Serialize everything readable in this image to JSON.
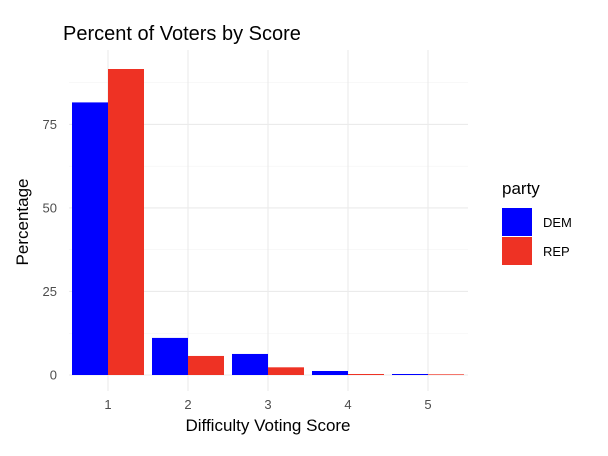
{
  "chart_data": {
    "type": "bar",
    "title": "Percent of Voters by Score",
    "xlabel": "Difficulty Voting Score",
    "ylabel": "Percentage",
    "categories": [
      "1",
      "2",
      "3",
      "4",
      "5"
    ],
    "series": [
      {
        "name": "DEM",
        "color": "#0000ff",
        "values": [
          81.6,
          11.1,
          6.3,
          1.2,
          0.3
        ]
      },
      {
        "name": "REP",
        "color": "#ee3224",
        "values": [
          91.6,
          5.7,
          2.3,
          0.3,
          0.2
        ]
      }
    ],
    "ylim": [
      0,
      96
    ],
    "yticks": [
      0,
      25,
      50,
      75
    ],
    "yticklabels": [
      "0",
      "25",
      "50",
      "75"
    ],
    "legend": {
      "title": "party",
      "position": "right"
    },
    "grid": true
  }
}
